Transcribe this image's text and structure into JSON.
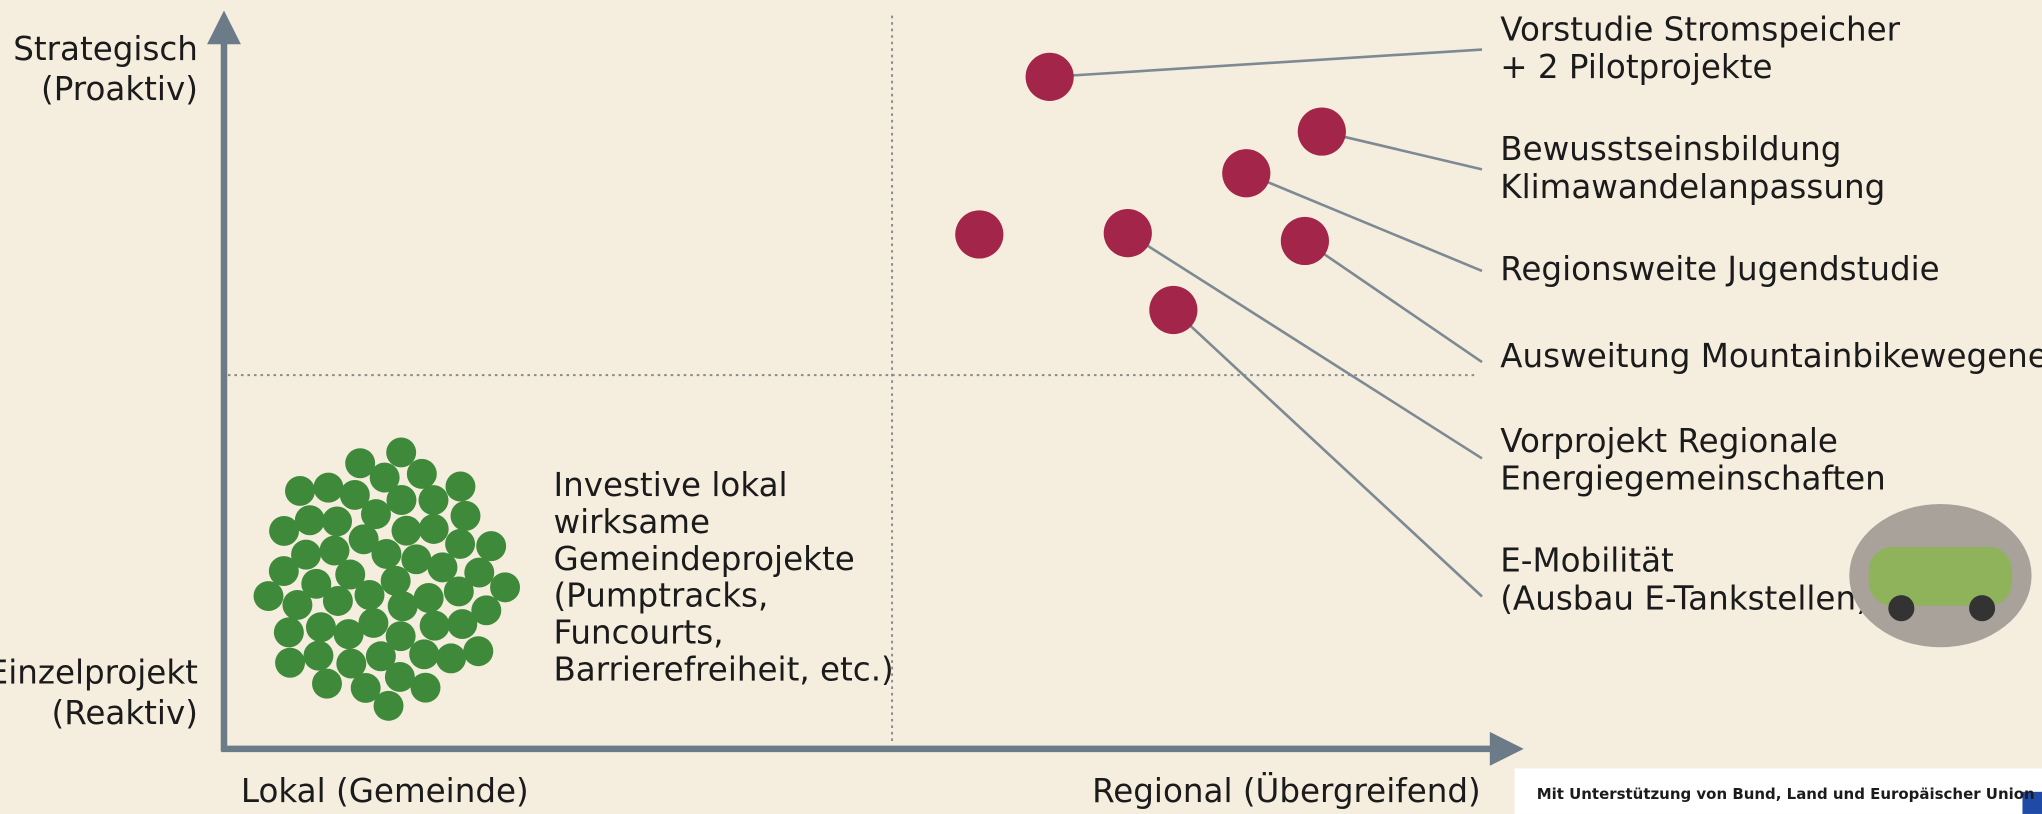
{
  "axes": {
    "y_top": [
      "Strategisch",
      "(Proaktiv)"
    ],
    "y_bottom": [
      "Einzelprojekt",
      "(Reaktiv)"
    ],
    "x_left": "Lokal (Gemeinde)",
    "x_right": "Regional (Übergreifend)"
  },
  "local_projects": {
    "lines": [
      "Investive lokal",
      "wirksame",
      "Gemeindeprojekte",
      "(Pumptracks,",
      "Funcourts,",
      "Barrierefreiheit, etc.)"
    ]
  },
  "regional_projects": [
    {
      "lines": [
        "Vorstudie Stromspeicher",
        "+ 2 Pilotprojekte"
      ]
    },
    {
      "lines": [
        "Bewusstseinsbildung",
        "Klimawandelanpassung"
      ]
    },
    {
      "lines": [
        "Regionsweite Jugendstudie"
      ]
    },
    {
      "lines": [
        "Ausweitung Mountainbikewegenetz"
      ]
    },
    {
      "lines": [
        "Vorprojekt Regionale",
        "Energiegemeinschaften"
      ]
    },
    {
      "lines": [
        "E-Mobilität",
        "(Ausbau E-Tankstellen)"
      ]
    }
  ],
  "footer": "Mit Unterstützung von Bund, Land und Europäischer Union"
}
